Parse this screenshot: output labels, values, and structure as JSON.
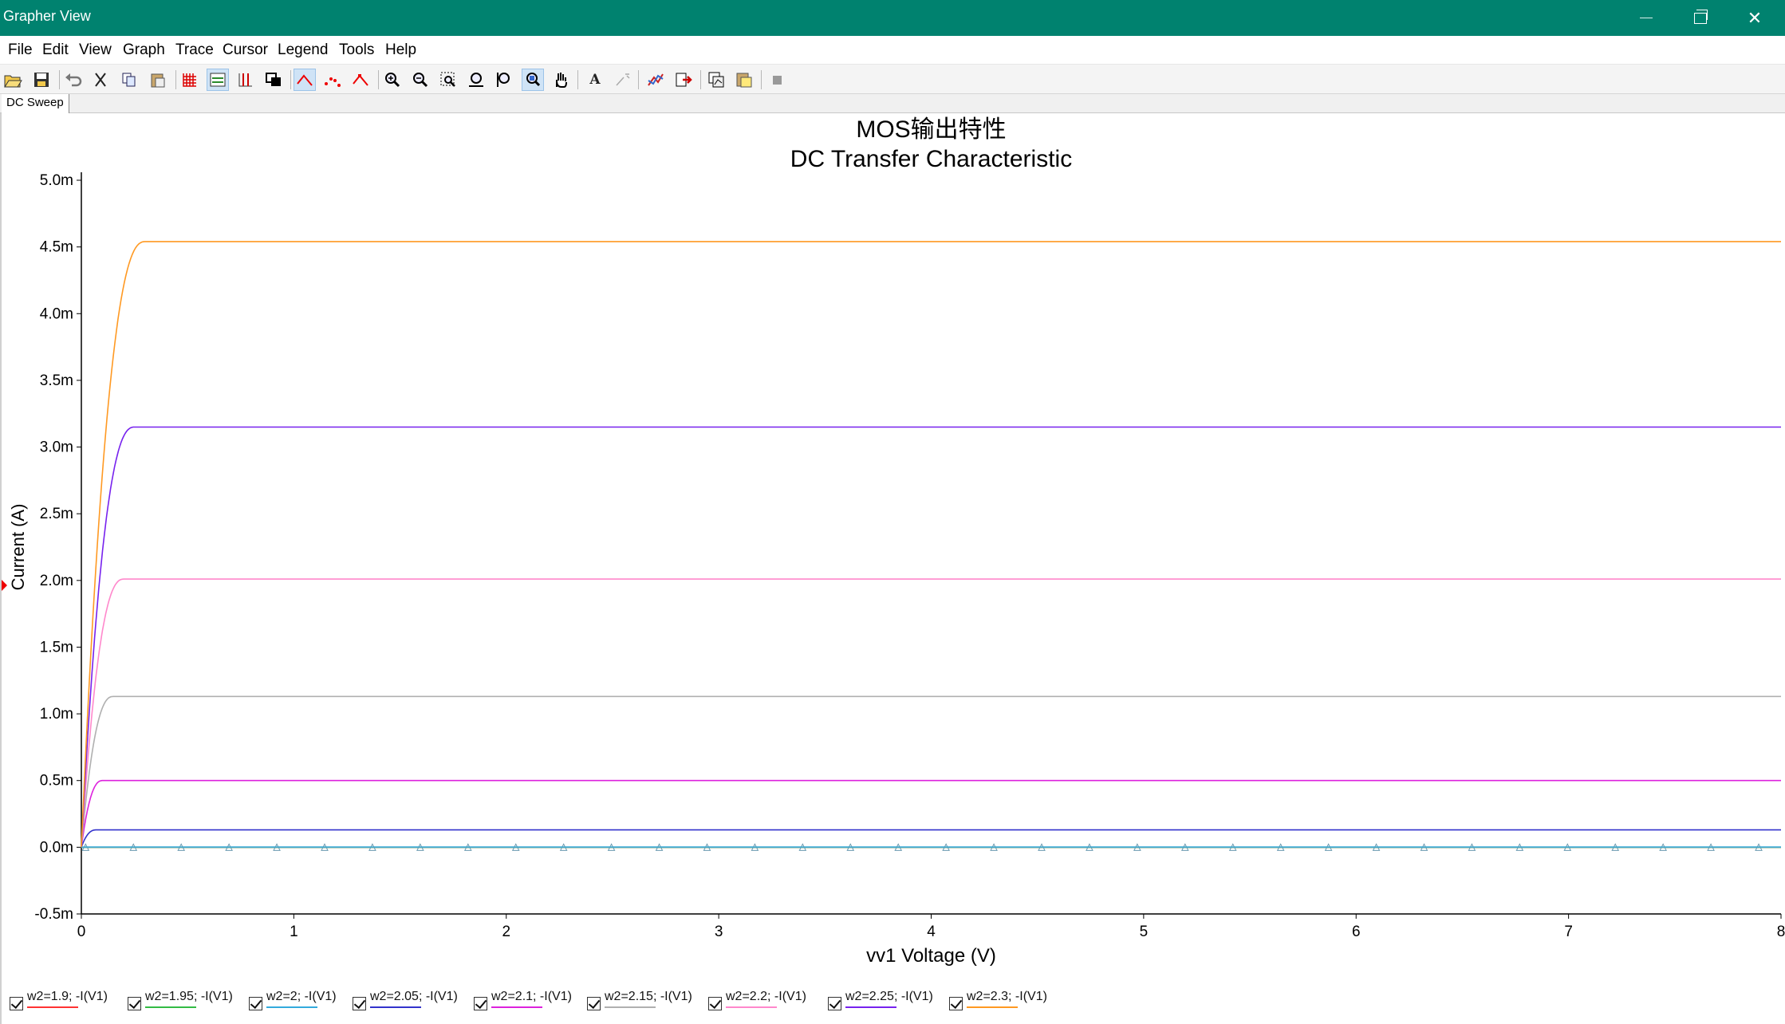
{
  "window": {
    "title": "Grapher View",
    "minimize_icon": "minimize-icon",
    "restore_icon": "restore-icon",
    "close_icon": "close-icon",
    "close_glyph": "✕"
  },
  "menu": [
    "File",
    "Edit",
    "View",
    "Graph",
    "Trace",
    "Cursor",
    "Legend",
    "Tools",
    "Help"
  ],
  "toolbar": {
    "icons": [
      "open-icon",
      "save-icon",
      "undo-icon",
      "cut-icon",
      "copy-icon",
      "paste-icon",
      "grid-icon",
      "legend-toggle-icon",
      "cursors-icon",
      "reverse-colors-icon",
      "line-trace-icon",
      "dot-trace-icon",
      "marker-trace-icon",
      "zoom-in-icon",
      "zoom-out-icon",
      "zoom-area-icon",
      "zoom-x-icon",
      "zoom-y-icon",
      "zoom-full-icon",
      "pan-icon",
      "text-icon",
      "label-icon",
      "overlay-traces-icon",
      "export-icon",
      "copy-graph-icon",
      "paste-graph-icon",
      "stop-icon"
    ],
    "text_glyph": "A"
  },
  "tabs": [
    {
      "label": "DC Sweep"
    }
  ],
  "chart_data": {
    "type": "line",
    "title": "MOS输出特性",
    "subtitle": "DC Transfer Characteristic",
    "xlabel": "vv1 Voltage (V)",
    "ylabel": "Current (A)",
    "xlim": [
      0,
      8
    ],
    "ylim": [
      -0.5,
      5.0
    ],
    "x_ticks": [
      "0",
      "1",
      "2",
      "3",
      "4",
      "5",
      "6",
      "7",
      "8"
    ],
    "y_ticks": [
      "-0.5m",
      "0.0m",
      "0.5m",
      "1.0m",
      "1.5m",
      "2.0m",
      "2.5m",
      "3.0m",
      "3.5m",
      "4.0m",
      "4.5m",
      "5.0m"
    ],
    "y_unit_scale": "mA",
    "grid": false,
    "legend_position": "bottom",
    "series": [
      {
        "name": "w2=1.9; -I(V1)",
        "color": "#ff3333",
        "saturation_current": 0.0,
        "knee_voltage": 0.02,
        "markers": "triangles"
      },
      {
        "name": "w2=1.95; -I(V1)",
        "color": "#33bb44",
        "saturation_current": 0.0,
        "knee_voltage": 0.02
      },
      {
        "name": "w2=2; -I(V1)",
        "color": "#33aadd",
        "saturation_current": 0.002,
        "knee_voltage": 0.03
      },
      {
        "name": "w2=2.05; -I(V1)",
        "color": "#3333cc",
        "saturation_current": 0.13,
        "knee_voltage": 0.07
      },
      {
        "name": "w2=2.1; -I(V1)",
        "color": "#dd22dd",
        "saturation_current": 0.5,
        "knee_voltage": 0.1
      },
      {
        "name": "w2=2.15; -I(V1)",
        "color": "#b0b0b0",
        "saturation_current": 1.13,
        "knee_voltage": 0.15
      },
      {
        "name": "w2=2.2; -I(V1)",
        "color": "#ff88cc",
        "saturation_current": 2.01,
        "knee_voltage": 0.2
      },
      {
        "name": "w2=2.25; -I(V1)",
        "color": "#7722ee",
        "saturation_current": 3.15,
        "knee_voltage": 0.25
      },
      {
        "name": "w2=2.3; -I(V1)",
        "color": "#ff9922",
        "saturation_current": 4.54,
        "knee_voltage": 0.3
      }
    ]
  }
}
